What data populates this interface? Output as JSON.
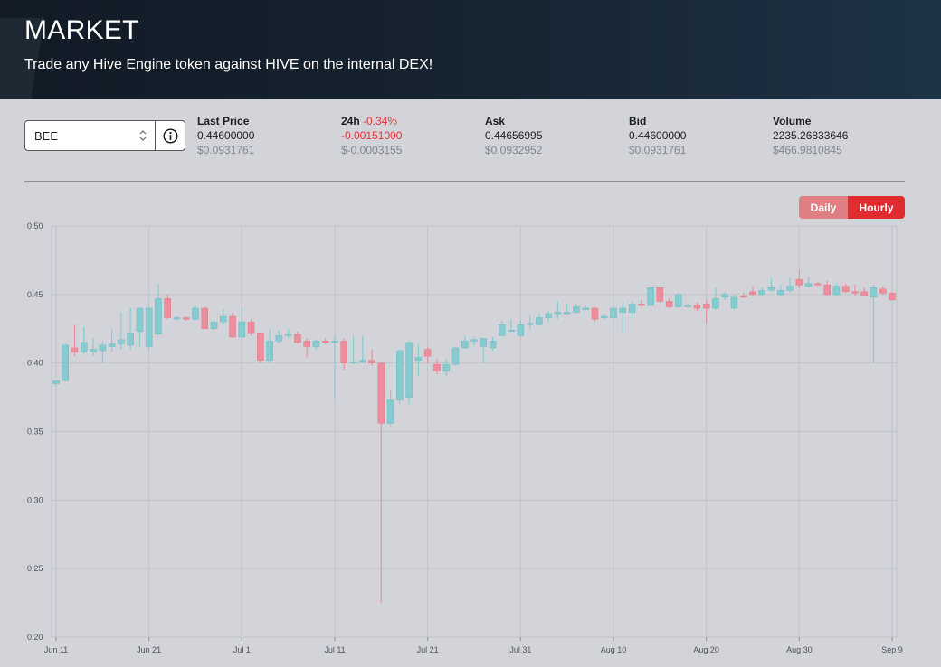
{
  "header": {
    "title": "MARKET",
    "subtitle": "Trade any Hive Engine token against HIVE on the internal DEX!"
  },
  "token_selector": {
    "value": "BEE"
  },
  "stats": {
    "last_price": {
      "label": "Last Price",
      "value": "0.44600000",
      "usd": "$0.0931761"
    },
    "change_24h": {
      "label": "24h",
      "percent": "-0.34%",
      "value": "-0.00151000",
      "usd": "$-0.0003155"
    },
    "ask": {
      "label": "Ask",
      "value": "0.44656995",
      "usd": "$0.0932952"
    },
    "bid": {
      "label": "Bid",
      "value": "0.44600000",
      "usd": "$0.0931761"
    },
    "volume": {
      "label": "Volume",
      "value": "2235.26833646",
      "usd": "$466.9810845"
    }
  },
  "toggle": {
    "daily": "Daily",
    "hourly": "Hourly",
    "active": "hourly"
  },
  "colors": {
    "up": "#86cbd0",
    "down": "#ee8e9c",
    "accent": "#e02b2f",
    "accent_light": "#e07f83"
  },
  "chart_data": {
    "type": "candlestick",
    "ylim": [
      0.2,
      0.5
    ],
    "y_ticks": [
      "0.50",
      "0.45",
      "0.40",
      "0.35",
      "0.30",
      "0.25",
      "0.20"
    ],
    "x_ticks": [
      "Jun 11",
      "Jun 21",
      "Jul 1",
      "Jul 11",
      "Jul 21",
      "Jul 31",
      "Aug 10",
      "Aug 20",
      "Aug 30",
      "Sep 9"
    ],
    "x_start": "Jun 11",
    "x_end": "Sep 9",
    "candles": [
      {
        "d": "Jun 11",
        "o": 0.385,
        "h": 0.387,
        "l": 0.383,
        "c": 0.387
      },
      {
        "d": "Jun 12",
        "o": 0.387,
        "h": 0.414,
        "l": 0.387,
        "c": 0.413
      },
      {
        "d": "Jun 13",
        "o": 0.411,
        "h": 0.428,
        "l": 0.405,
        "c": 0.408
      },
      {
        "d": "Jun 14",
        "o": 0.408,
        "h": 0.426,
        "l": 0.407,
        "c": 0.415
      },
      {
        "d": "Jun 15",
        "o": 0.408,
        "h": 0.418,
        "l": 0.405,
        "c": 0.41
      },
      {
        "d": "Jun 16",
        "o": 0.409,
        "h": 0.416,
        "l": 0.4,
        "c": 0.413
      },
      {
        "d": "Jun 17",
        "o": 0.412,
        "h": 0.425,
        "l": 0.408,
        "c": 0.414
      },
      {
        "d": "Jun 18",
        "o": 0.414,
        "h": 0.437,
        "l": 0.41,
        "c": 0.417
      },
      {
        "d": "Jun 19",
        "o": 0.413,
        "h": 0.44,
        "l": 0.41,
        "c": 0.422
      },
      {
        "d": "Jun 20",
        "o": 0.423,
        "h": 0.44,
        "l": 0.412,
        "c": 0.44
      },
      {
        "d": "Jun 21",
        "o": 0.412,
        "h": 0.44,
        "l": 0.41,
        "c": 0.44
      },
      {
        "d": "Jun 22",
        "o": 0.421,
        "h": 0.458,
        "l": 0.42,
        "c": 0.447
      },
      {
        "d": "Jun 23",
        "o": 0.447,
        "h": 0.45,
        "l": 0.432,
        "c": 0.433
      },
      {
        "d": "Jun 24",
        "o": 0.433,
        "h": 0.434,
        "l": 0.432,
        "c": 0.433
      },
      {
        "d": "Jun 25",
        "o": 0.433,
        "h": 0.434,
        "l": 0.431,
        "c": 0.432
      },
      {
        "d": "Jun 26",
        "o": 0.432,
        "h": 0.442,
        "l": 0.431,
        "c": 0.44
      },
      {
        "d": "Jun 27",
        "o": 0.44,
        "h": 0.441,
        "l": 0.425,
        "c": 0.425
      },
      {
        "d": "Jun 28",
        "o": 0.425,
        "h": 0.432,
        "l": 0.424,
        "c": 0.43
      },
      {
        "d": "Jun 29",
        "o": 0.43,
        "h": 0.439,
        "l": 0.428,
        "c": 0.434
      },
      {
        "d": "Jun 30",
        "o": 0.434,
        "h": 0.437,
        "l": 0.418,
        "c": 0.419
      },
      {
        "d": "Jul 1",
        "o": 0.419,
        "h": 0.44,
        "l": 0.417,
        "c": 0.43
      },
      {
        "d": "Jul 2",
        "o": 0.43,
        "h": 0.432,
        "l": 0.42,
        "c": 0.422
      },
      {
        "d": "Jul 3",
        "o": 0.422,
        "h": 0.422,
        "l": 0.4,
        "c": 0.402
      },
      {
        "d": "Jul 4",
        "o": 0.402,
        "h": 0.425,
        "l": 0.4,
        "c": 0.416
      },
      {
        "d": "Jul 5",
        "o": 0.416,
        "h": 0.424,
        "l": 0.414,
        "c": 0.42
      },
      {
        "d": "Jul 6",
        "o": 0.42,
        "h": 0.425,
        "l": 0.418,
        "c": 0.421
      },
      {
        "d": "Jul 7",
        "o": 0.421,
        "h": 0.423,
        "l": 0.414,
        "c": 0.415
      },
      {
        "d": "Jul 8",
        "o": 0.416,
        "h": 0.418,
        "l": 0.404,
        "c": 0.412
      },
      {
        "d": "Jul 9",
        "o": 0.412,
        "h": 0.417,
        "l": 0.41,
        "c": 0.416
      },
      {
        "d": "Jul 10",
        "o": 0.416,
        "h": 0.418,
        "l": 0.414,
        "c": 0.415
      },
      {
        "d": "Jul 11",
        "o": 0.415,
        "h": 0.42,
        "l": 0.374,
        "c": 0.416
      },
      {
        "d": "Jul 12",
        "o": 0.416,
        "h": 0.418,
        "l": 0.395,
        "c": 0.4
      },
      {
        "d": "Jul 13",
        "o": 0.4,
        "h": 0.42,
        "l": 0.399,
        "c": 0.401
      },
      {
        "d": "Jul 14",
        "o": 0.401,
        "h": 0.42,
        "l": 0.4,
        "c": 0.402
      },
      {
        "d": "Jul 15",
        "o": 0.402,
        "h": 0.41,
        "l": 0.398,
        "c": 0.4
      },
      {
        "d": "Jul 16",
        "o": 0.4,
        "h": 0.4,
        "l": 0.225,
        "c": 0.356
      },
      {
        "d": "Jul 17",
        "o": 0.356,
        "h": 0.38,
        "l": 0.354,
        "c": 0.373
      },
      {
        "d": "Jul 18",
        "o": 0.373,
        "h": 0.41,
        "l": 0.37,
        "c": 0.409
      },
      {
        "d": "Jul 19",
        "o": 0.375,
        "h": 0.416,
        "l": 0.37,
        "c": 0.415
      },
      {
        "d": "Jul 20",
        "o": 0.402,
        "h": 0.414,
        "l": 0.39,
        "c": 0.404
      },
      {
        "d": "Jul 21",
        "o": 0.41,
        "h": 0.412,
        "l": 0.4,
        "c": 0.405
      },
      {
        "d": "Jul 22",
        "o": 0.399,
        "h": 0.403,
        "l": 0.392,
        "c": 0.394
      },
      {
        "d": "Jul 23",
        "o": 0.394,
        "h": 0.403,
        "l": 0.39,
        "c": 0.399
      },
      {
        "d": "Jul 24",
        "o": 0.399,
        "h": 0.412,
        "l": 0.398,
        "c": 0.411
      },
      {
        "d": "Jul 25",
        "o": 0.411,
        "h": 0.42,
        "l": 0.41,
        "c": 0.416
      },
      {
        "d": "Jul 26",
        "o": 0.416,
        "h": 0.419,
        "l": 0.413,
        "c": 0.417
      },
      {
        "d": "Jul 27",
        "o": 0.412,
        "h": 0.418,
        "l": 0.4,
        "c": 0.418
      },
      {
        "d": "Jul 28",
        "o": 0.411,
        "h": 0.419,
        "l": 0.409,
        "c": 0.416
      },
      {
        "d": "Jul 29",
        "o": 0.42,
        "h": 0.431,
        "l": 0.42,
        "c": 0.428
      },
      {
        "d": "Jul 30",
        "o": 0.424,
        "h": 0.432,
        "l": 0.423,
        "c": 0.424
      },
      {
        "d": "Jul 31",
        "o": 0.42,
        "h": 0.431,
        "l": 0.419,
        "c": 0.428
      },
      {
        "d": "Aug 1",
        "o": 0.428,
        "h": 0.435,
        "l": 0.425,
        "c": 0.429
      },
      {
        "d": "Aug 2",
        "o": 0.428,
        "h": 0.436,
        "l": 0.427,
        "c": 0.433
      },
      {
        "d": "Aug 3",
        "o": 0.433,
        "h": 0.438,
        "l": 0.43,
        "c": 0.436
      },
      {
        "d": "Aug 4",
        "o": 0.436,
        "h": 0.445,
        "l": 0.432,
        "c": 0.437
      },
      {
        "d": "Aug 5",
        "o": 0.437,
        "h": 0.443,
        "l": 0.435,
        "c": 0.437
      },
      {
        "d": "Aug 6",
        "o": 0.437,
        "h": 0.443,
        "l": 0.436,
        "c": 0.441
      },
      {
        "d": "Aug 7",
        "o": 0.44,
        "h": 0.442,
        "l": 0.439,
        "c": 0.44
      },
      {
        "d": "Aug 8",
        "o": 0.44,
        "h": 0.441,
        "l": 0.43,
        "c": 0.432
      },
      {
        "d": "Aug 9",
        "o": 0.433,
        "h": 0.436,
        "l": 0.432,
        "c": 0.434
      },
      {
        "d": "Aug 10",
        "o": 0.433,
        "h": 0.442,
        "l": 0.432,
        "c": 0.44
      },
      {
        "d": "Aug 11",
        "o": 0.437,
        "h": 0.445,
        "l": 0.422,
        "c": 0.44
      },
      {
        "d": "Aug 12",
        "o": 0.437,
        "h": 0.445,
        "l": 0.433,
        "c": 0.443
      },
      {
        "d": "Aug 13",
        "o": 0.443,
        "h": 0.446,
        "l": 0.441,
        "c": 0.442
      },
      {
        "d": "Aug 14",
        "o": 0.442,
        "h": 0.456,
        "l": 0.441,
        "c": 0.455
      },
      {
        "d": "Aug 15",
        "o": 0.455,
        "h": 0.455,
        "l": 0.444,
        "c": 0.445
      },
      {
        "d": "Aug 16",
        "o": 0.445,
        "h": 0.447,
        "l": 0.44,
        "c": 0.441
      },
      {
        "d": "Aug 17",
        "o": 0.441,
        "h": 0.451,
        "l": 0.44,
        "c": 0.45
      },
      {
        "d": "Aug 18",
        "o": 0.442,
        "h": 0.444,
        "l": 0.441,
        "c": 0.442
      },
      {
        "d": "Aug 19",
        "o": 0.442,
        "h": 0.444,
        "l": 0.438,
        "c": 0.44
      },
      {
        "d": "Aug 20",
        "o": 0.443,
        "h": 0.446,
        "l": 0.429,
        "c": 0.44
      },
      {
        "d": "Aug 21",
        "o": 0.44,
        "h": 0.455,
        "l": 0.439,
        "c": 0.447
      },
      {
        "d": "Aug 22",
        "o": 0.448,
        "h": 0.452,
        "l": 0.446,
        "c": 0.45
      },
      {
        "d": "Aug 23",
        "o": 0.44,
        "h": 0.45,
        "l": 0.439,
        "c": 0.448
      },
      {
        "d": "Aug 24",
        "o": 0.449,
        "h": 0.451,
        "l": 0.447,
        "c": 0.448
      },
      {
        "d": "Aug 25",
        "o": 0.452,
        "h": 0.456,
        "l": 0.449,
        "c": 0.45
      },
      {
        "d": "Aug 26",
        "o": 0.45,
        "h": 0.455,
        "l": 0.449,
        "c": 0.453
      },
      {
        "d": "Aug 27",
        "o": 0.453,
        "h": 0.462,
        "l": 0.452,
        "c": 0.455
      },
      {
        "d": "Aug 28",
        "o": 0.45,
        "h": 0.457,
        "l": 0.449,
        "c": 0.453
      },
      {
        "d": "Aug 29",
        "o": 0.453,
        "h": 0.462,
        "l": 0.451,
        "c": 0.456
      },
      {
        "d": "Aug 30",
        "o": 0.461,
        "h": 0.468,
        "l": 0.455,
        "c": 0.457
      },
      {
        "d": "Aug 31",
        "o": 0.456,
        "h": 0.463,
        "l": 0.455,
        "c": 0.458
      },
      {
        "d": "Sep 1",
        "o": 0.458,
        "h": 0.459,
        "l": 0.456,
        "c": 0.457
      },
      {
        "d": "Sep 2",
        "o": 0.457,
        "h": 0.46,
        "l": 0.449,
        "c": 0.45
      },
      {
        "d": "Sep 3",
        "o": 0.45,
        "h": 0.458,
        "l": 0.449,
        "c": 0.456
      },
      {
        "d": "Sep 4",
        "o": 0.456,
        "h": 0.458,
        "l": 0.451,
        "c": 0.452
      },
      {
        "d": "Sep 5",
        "o": 0.452,
        "h": 0.457,
        "l": 0.449,
        "c": 0.451
      },
      {
        "d": "Sep 6",
        "o": 0.452,
        "h": 0.455,
        "l": 0.449,
        "c": 0.449
      },
      {
        "d": "Sep 7",
        "o": 0.448,
        "h": 0.457,
        "l": 0.4,
        "c": 0.455
      },
      {
        "d": "Sep 8",
        "o": 0.454,
        "h": 0.456,
        "l": 0.45,
        "c": 0.451
      },
      {
        "d": "Sep 9",
        "o": 0.451,
        "h": 0.452,
        "l": 0.446,
        "c": 0.446
      }
    ]
  }
}
